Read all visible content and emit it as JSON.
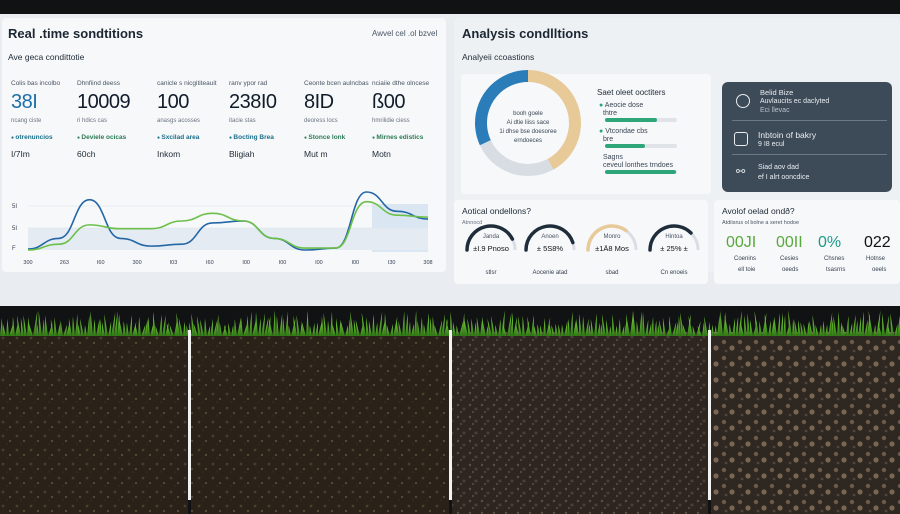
{
  "left": {
    "title": "Real .time sondtitions",
    "subtitle": "Awvel cel .ol bzvel",
    "section": "Ave geca condittotie",
    "metrics": [
      {
        "label": "Colis bas incolbo",
        "value": "38I",
        "note": "ncang ciste",
        "tag": "otrenuncios",
        "unit": "I/7Im"
      },
      {
        "label": "Dhnfiind deess",
        "value": "10009",
        "note": "ri hdics cas",
        "tag": "Deviele ocicas",
        "unit": "60ch"
      },
      {
        "label": "canicle s nicgititeauit",
        "value": "100",
        "note": "anasgs acosses",
        "tag": "Sxcilad area",
        "unit": "Inkom"
      },
      {
        "label": "ranv ypor rad",
        "value": "238I0",
        "note": "itacie stas",
        "tag": "Bocting Brea",
        "unit": "Bligiah"
      },
      {
        "label": "Ceonte bcen aulncbas",
        "value": "8ID",
        "note": "deoress locs",
        "tag": "Stonce lonk",
        "unit": "Mut m"
      },
      {
        "label": "nciaiie dthe olncese",
        "value": "ß00",
        "note": "hmrilidie ciess",
        "tag": "Mirnes edistics",
        "unit": "Motn"
      }
    ],
    "chart_data": {
      "type": "line",
      "x_tick_labels": [
        "300",
        "263",
        "I60",
        "300",
        "I03",
        "I60",
        "I00",
        "I00",
        "I00",
        "I00",
        "I30",
        "308"
      ],
      "y_tick_labels": [
        "5I",
        "5I",
        "F"
      ],
      "series": [
        {
          "name": "",
          "color": "#2566a6",
          "values": [
            1,
            12,
            52,
            12,
            4,
            6,
            28,
            30,
            12,
            0,
            2,
            60,
            40,
            32
          ]
        },
        {
          "name": "",
          "color": "#6cc04a",
          "values": [
            0,
            6,
            26,
            22,
            22,
            30,
            38,
            30,
            12,
            2,
            2,
            50,
            36,
            34
          ]
        }
      ],
      "ylim": [
        0,
        60
      ]
    }
  },
  "right": {
    "title": "Analysis condlltions",
    "section": "Analyeii ccoastions",
    "donut": {
      "center_lines": [
        "booh goele",
        "Ai dtie liiss sace",
        "1i dhse bse doesoree",
        "erndoeces"
      ],
      "segments": [
        {
          "color": "#e8c998",
          "fraction": 0.42
        },
        {
          "color": "#d8dde3",
          "fraction": 0.26
        },
        {
          "color": "#2a7db8",
          "fraction": 0.32
        }
      ]
    },
    "legend": {
      "title": "Saet oleet ooctiters",
      "items": [
        {
          "label": "Aeocie dose",
          "sub": "thtre",
          "fraction": 0.72
        },
        {
          "label": "Vtcondae cbs",
          "sub": "bre",
          "fraction": 0.56
        },
        {
          "label": "Sagns",
          "sub": "ceveul lonthes trndoes",
          "fraction": 0.98
        }
      ]
    },
    "dark": {
      "rows": [
        {
          "title": "Belid Bize",
          "sub1": "Auvlaucits ec daclyted",
          "sub2": "Eci llevac"
        },
        {
          "title": "Inbtoin of bakry",
          "sub1": "9 I8 ecul",
          "sub2": ""
        },
        {
          "title": "Siad aov dad",
          "sub1": "ef I alrt ooncdice",
          "sub2": ""
        }
      ]
    },
    "gauges": {
      "title": "Aotical ondellons?",
      "subtitle": "Atnnocd",
      "items": [
        {
          "label": "Janda",
          "value": "±I.9 Pnoso",
          "caption": "stlsr",
          "color": "#1f2d3b",
          "fraction": 0.85
        },
        {
          "label": "Anoen",
          "value": "± 5S8%",
          "caption": "Aocenie atad",
          "color": "#1f2d3b",
          "fraction": 0.9
        },
        {
          "label": "Monro",
          "value": "±1Ä8 Mos",
          "caption": "sbad",
          "color": "#e8c998",
          "fraction": 0.7
        },
        {
          "label": "Hintoa",
          "value": "± 25% ±",
          "caption": "Cn enoeis",
          "color": "#1f2d3b",
          "fraction": 0.75
        }
      ]
    },
    "stats": {
      "title": "Avolof oelad ondð?",
      "subtitle": "Atdiisrus ol bolne a seret hodoe",
      "items": [
        {
          "value": "00JI",
          "label": "Coenins",
          "caption": "ell toie",
          "color": "#5aa83c"
        },
        {
          "value": "00II",
          "label": "Cesies",
          "caption": "oeeds",
          "color": "#5aa83c"
        },
        {
          "value": "0%",
          "label": "Chsnes",
          "caption": "tsasrns",
          "color": "#1c9a88"
        },
        {
          "value": "022",
          "label": "Hotnse",
          "caption": "oeels",
          "color": "#111"
        }
      ]
    }
  }
}
